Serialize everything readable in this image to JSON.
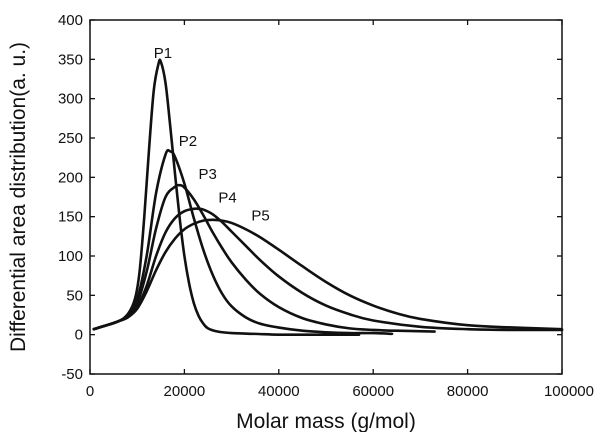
{
  "chart_data": {
    "type": "line",
    "title": "",
    "xlabel": "Molar mass (g/mol)",
    "ylabel": "Differential area distribution(a. u.)",
    "xlim": [
      0,
      100000
    ],
    "ylim": [
      -50,
      400
    ],
    "xticks": [
      0,
      20000,
      40000,
      60000,
      80000,
      100000
    ],
    "xtick_labels": [
      "0",
      "20000",
      "40000",
      "60000",
      "80000",
      "100000"
    ],
    "yticks": [
      -50,
      0,
      50,
      100,
      150,
      200,
      250,
      300,
      350,
      400
    ],
    "ytick_labels": [
      "-50",
      "0",
      "50",
      "100",
      "150",
      "200",
      "250",
      "300",
      "350",
      "400"
    ],
    "grid": false,
    "legend": "none",
    "line_color": "#111111",
    "series": [
      {
        "name": "P1",
        "label_at": [
          13500,
          352
        ],
        "x": [
          800,
          3000,
          6000,
          8000,
          9500,
          10500,
          11500,
          12500,
          13500,
          14500,
          15000,
          16000,
          17000,
          18000,
          19000,
          20000,
          21000,
          22000,
          23000,
          24000,
          25000,
          27000,
          30000,
          35000,
          40000,
          45000,
          50000,
          57000
        ],
        "y": [
          7,
          11,
          17,
          26,
          45,
          80,
          150,
          235,
          310,
          344,
          347,
          320,
          265,
          205,
          148,
          100,
          65,
          40,
          24,
          14,
          8,
          4,
          2,
          1,
          0,
          0,
          0,
          0
        ]
      },
      {
        "name": "P2",
        "label_at": [
          18800,
          240
        ],
        "x": [
          800,
          3000,
          6000,
          8000,
          10000,
          12000,
          14000,
          16000,
          17000,
          18000,
          20000,
          22000,
          24000,
          26000,
          28000,
          30000,
          33000,
          36000,
          40000,
          45000,
          50000,
          55000,
          60000,
          64000
        ],
        "y": [
          7,
          11,
          17,
          24,
          45,
          100,
          180,
          229,
          233,
          226,
          192,
          148,
          108,
          76,
          52,
          36,
          22,
          14,
          9,
          5,
          3,
          2,
          2,
          1
        ]
      },
      {
        "name": "P3",
        "label_at": [
          23000,
          198
        ],
        "x": [
          800,
          3000,
          6000,
          8000,
          10000,
          12000,
          14000,
          16000,
          18000,
          19000,
          20000,
          22000,
          24000,
          26000,
          28000,
          30000,
          33000,
          36000,
          40000,
          45000,
          50000,
          55000,
          60000,
          65000,
          73000
        ],
        "y": [
          7,
          11,
          17,
          24,
          40,
          80,
          135,
          175,
          188,
          190,
          187,
          172,
          152,
          130,
          110,
          92,
          70,
          52,
          35,
          21,
          13,
          8,
          6,
          5,
          4
        ]
      },
      {
        "name": "P4",
        "label_at": [
          27200,
          168
        ],
        "x": [
          800,
          3000,
          6000,
          8000,
          10000,
          12000,
          14000,
          16000,
          18000,
          20000,
          22000,
          23000,
          24000,
          26000,
          28000,
          30000,
          33000,
          36000,
          40000,
          45000,
          50000,
          55000,
          60000,
          70000,
          80000,
          90000,
          100000
        ],
        "y": [
          7,
          11,
          17,
          22,
          35,
          62,
          100,
          130,
          148,
          157,
          160,
          160,
          159,
          153,
          143,
          131,
          113,
          95,
          74,
          53,
          37,
          26,
          18,
          10,
          7,
          6,
          6
        ]
      },
      {
        "name": "P5",
        "label_at": [
          34200,
          145
        ],
        "x": [
          800,
          3000,
          6000,
          8000,
          10000,
          12000,
          14000,
          16000,
          18000,
          20000,
          22000,
          24000,
          26000,
          28000,
          30000,
          33000,
          36000,
          40000,
          45000,
          50000,
          55000,
          60000,
          65000,
          70000,
          80000,
          90000,
          100000
        ],
        "y": [
          7,
          11,
          17,
          22,
          33,
          55,
          82,
          105,
          122,
          134,
          141,
          145,
          146,
          145,
          142,
          134,
          124,
          108,
          87,
          67,
          50,
          37,
          27,
          20,
          12,
          9,
          7
        ]
      }
    ]
  }
}
